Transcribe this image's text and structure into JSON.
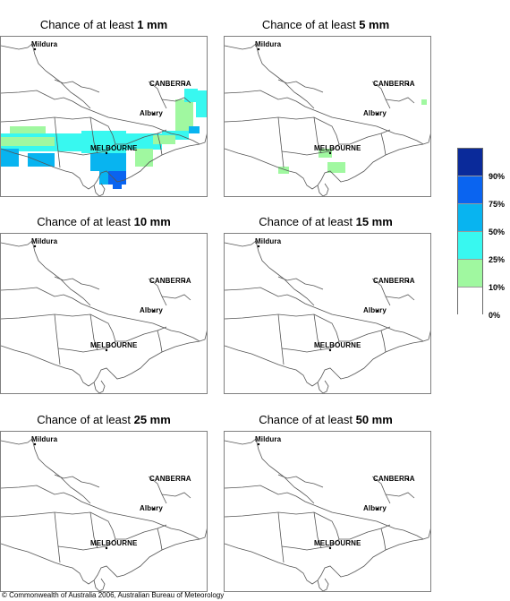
{
  "panels": [
    {
      "prefix": "Chance of at least ",
      "amount": "1 mm"
    },
    {
      "prefix": "Chance of at least ",
      "amount": "5 mm"
    },
    {
      "prefix": "Chance of at least ",
      "amount": "10 mm"
    },
    {
      "prefix": "Chance of at least ",
      "amount": "15 mm"
    },
    {
      "prefix": "Chance of at least ",
      "amount": "25 mm"
    },
    {
      "prefix": "Chance of at least ",
      "amount": "50 mm"
    }
  ],
  "cities": {
    "mildura": "Mildura",
    "canberra": "CANBERRA",
    "albury": "Albury",
    "melbourne": "MELBOURNE"
  },
  "legend": {
    "labels": [
      "90%",
      "75%",
      "50%",
      "25%",
      "10%",
      "0%"
    ],
    "colors": [
      "#0a2a9a",
      "#0a64f0",
      "#08b4f0",
      "#38f8f0",
      "#a0f8a0",
      "#ffffff"
    ]
  },
  "copyright": "© Commonwealth of Australia 2006, Australian Bureau of Meteorology"
}
